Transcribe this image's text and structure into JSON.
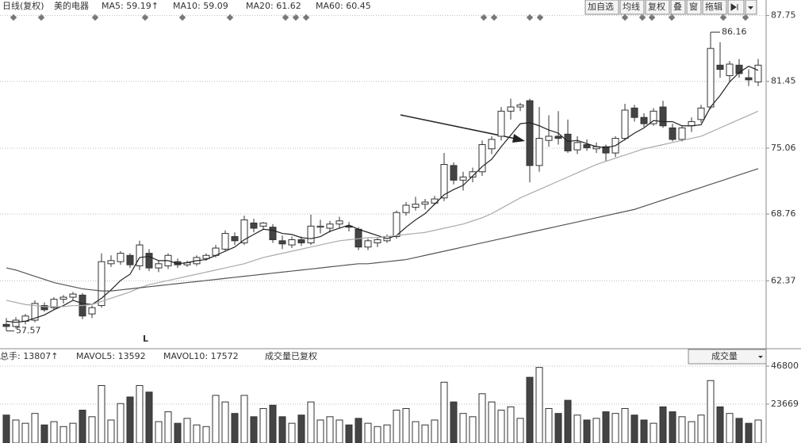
{
  "toolbar": [
    "加自选",
    "均线",
    "复权",
    "叠",
    "窗",
    "拖辑"
  ],
  "chart_data": [
    {
      "type": "candlestick",
      "period": "日线(复权)",
      "stock": "美的电器",
      "legend_texts": [
        "MA5: 59.19↑",
        "MA10: 59.09",
        "MA20: 61.62",
        "MA60: 60.45"
      ],
      "annotations": [
        "86.16",
        "57.57",
        "L"
      ],
      "ylim": [
        56.1,
        88.1
      ],
      "yticks": [
        62.37,
        68.76,
        75.06,
        81.45,
        87.75
      ],
      "grid": true,
      "up_color": "#ffffff",
      "down_color": "#444444",
      "open": [
        58.2,
        58.0,
        58.5,
        58.6,
        60.0,
        59.8,
        60.6,
        60.8,
        61.0,
        59.2,
        60.0,
        64.0,
        64.2,
        64.8,
        63.8,
        65.0,
        63.6,
        63.8,
        64.2,
        63.9,
        64.0,
        64.5,
        64.8,
        65.4,
        66.6,
        66.0,
        67.9,
        67.6,
        67.5,
        66.2,
        65.8,
        66.3,
        66.0,
        67.5,
        67.4,
        67.8,
        67.6,
        67.3,
        65.6,
        66.0,
        66.2,
        66.6,
        68.9,
        69.4,
        69.7,
        69.8,
        70.3,
        73.4,
        72.0,
        72.3,
        72.8,
        75.0,
        76.2,
        78.6,
        79.0,
        79.6,
        73.4,
        75.8,
        76.2,
        76.4,
        74.9,
        75.4,
        75.0,
        75.2,
        74.6,
        76.0,
        78.9,
        78.0,
        77.4,
        79.0,
        77.0,
        75.9,
        77.2,
        77.8,
        79.0,
        83.0,
        82.0,
        83.0,
        81.8,
        81.4
      ],
      "high": [
        58.8,
        58.9,
        59.2,
        60.5,
        60.3,
        60.8,
        61.0,
        61.3,
        61.2,
        60.0,
        65.0,
        64.8,
        65.2,
        65.0,
        66.2,
        65.4,
        64.3,
        65.0,
        64.5,
        64.3,
        64.8,
        65.0,
        65.8,
        67.2,
        67.0,
        68.6,
        68.3,
        68.0,
        67.8,
        66.7,
        66.6,
        66.6,
        68.7,
        68.2,
        68.1,
        68.5,
        68.0,
        67.5,
        66.4,
        66.5,
        66.8,
        69.1,
        69.9,
        70.4,
        70.2,
        70.5,
        74.6,
        73.7,
        72.8,
        73.2,
        75.8,
        76.2,
        79.0,
        79.8,
        79.4,
        79.8,
        79.0,
        78.2,
        78.6,
        77.8,
        76.2,
        75.9,
        75.6,
        75.4,
        76.2,
        79.3,
        79.2,
        78.4,
        78.9,
        79.6,
        77.4,
        77.2,
        78.0,
        79.2,
        86.16,
        85.2,
        83.4,
        83.6,
        82.6,
        83.6
      ],
      "low": [
        57.57,
        57.8,
        58.2,
        58.4,
        59.4,
        59.6,
        60.2,
        60.5,
        58.7,
        58.8,
        59.8,
        63.7,
        63.9,
        63.6,
        63.4,
        63.3,
        63.2,
        63.5,
        63.6,
        63.7,
        63.8,
        64.3,
        64.6,
        65.2,
        65.8,
        65.8,
        67.0,
        67.3,
        66.0,
        65.4,
        65.5,
        65.7,
        65.8,
        66.9,
        67.0,
        67.4,
        67.1,
        65.3,
        65.3,
        65.6,
        66.0,
        66.4,
        68.6,
        69.1,
        69.2,
        69.6,
        70.0,
        71.6,
        71.0,
        71.8,
        72.4,
        74.5,
        75.8,
        77.8,
        78.6,
        71.8,
        72.8,
        75.2,
        75.4,
        74.6,
        74.5,
        74.8,
        74.6,
        73.8,
        74.2,
        75.8,
        77.6,
        77.1,
        77.2,
        77.0,
        75.7,
        75.7,
        76.6,
        77.5,
        78.8,
        81.8,
        81.4,
        81.8,
        81.0,
        81.0
      ],
      "close": [
        58.0,
        58.6,
        59.0,
        60.2,
        59.6,
        60.6,
        60.8,
        61.1,
        59.0,
        59.8,
        64.2,
        64.3,
        65.0,
        63.9,
        65.8,
        63.6,
        64.0,
        64.8,
        63.9,
        64.1,
        64.6,
        64.8,
        65.5,
        66.9,
        66.2,
        68.2,
        67.4,
        67.9,
        66.3,
        65.9,
        66.3,
        66.0,
        67.6,
        67.6,
        67.8,
        68.1,
        67.5,
        65.6,
        66.2,
        66.3,
        66.6,
        68.9,
        69.6,
        69.7,
        69.9,
        70.2,
        73.5,
        72.0,
        72.3,
        72.8,
        75.4,
        75.9,
        78.6,
        79.0,
        79.2,
        73.4,
        76.0,
        76.2,
        76.0,
        74.8,
        75.6,
        75.1,
        75.2,
        74.6,
        76.0,
        78.7,
        78.0,
        77.4,
        78.6,
        77.2,
        75.9,
        77.0,
        77.6,
        78.9,
        84.6,
        82.6,
        83.1,
        82.2,
        81.6,
        83.0
      ],
      "lines": [
        {
          "name": "MA5",
          "color": "#222222",
          "values": [
            58.5,
            58.4,
            58.5,
            58.8,
            59.1,
            59.6,
            60.0,
            60.5,
            60.2,
            60.1,
            60.7,
            61.5,
            62.4,
            63.0,
            64.6,
            64.7,
            64.3,
            64.3,
            64.0,
            64.1,
            64.3,
            64.4,
            64.8,
            65.2,
            65.6,
            66.3,
            66.8,
            67.3,
            67.2,
            66.9,
            66.8,
            66.5,
            66.4,
            66.6,
            67.1,
            67.4,
            67.7,
            67.3,
            67.0,
            66.7,
            66.4,
            66.7,
            67.5,
            68.2,
            68.8,
            69.7,
            70.6,
            71.1,
            71.5,
            72.4,
            73.3,
            74.0,
            75.2,
            76.3,
            77.4,
            77.5,
            77.2,
            76.8,
            76.5,
            75.7,
            75.8,
            75.5,
            75.2,
            75.1,
            75.3,
            75.9,
            76.5,
            77.0,
            77.7,
            77.6,
            77.6,
            77.2,
            77.2,
            77.3,
            79.0,
            80.1,
            81.4,
            82.3,
            82.9,
            82.5
          ]
        },
        {
          "name": "MA20",
          "color": "#aaaaaa",
          "values": [
            60.5,
            60.3,
            60.1,
            60.0,
            59.9,
            59.9,
            59.9,
            60.0,
            60.0,
            60.1,
            60.4,
            60.7,
            61.0,
            61.3,
            61.7,
            62.0,
            62.2,
            62.4,
            62.6,
            62.8,
            63.0,
            63.2,
            63.4,
            63.6,
            63.8,
            64.0,
            64.3,
            64.6,
            64.8,
            65.0,
            65.2,
            65.4,
            65.6,
            65.8,
            66.0,
            66.2,
            66.3,
            66.4,
            66.5,
            66.5,
            66.6,
            66.7,
            66.8,
            66.9,
            67.0,
            67.2,
            67.4,
            67.6,
            67.8,
            68.1,
            68.4,
            68.8,
            69.3,
            69.8,
            70.3,
            70.7,
            71.1,
            71.5,
            71.9,
            72.3,
            72.7,
            73.1,
            73.5,
            73.8,
            74.1,
            74.4,
            74.7,
            75.0,
            75.2,
            75.4,
            75.6,
            75.8,
            76.0,
            76.2,
            76.6,
            77.0,
            77.4,
            77.8,
            78.2,
            78.6
          ]
        },
        {
          "name": "MA60",
          "color": "#555555",
          "values": [
            63.6,
            63.4,
            63.1,
            62.8,
            62.5,
            62.2,
            62.0,
            61.8,
            61.6,
            61.5,
            61.4,
            61.4,
            61.5,
            61.6,
            61.7,
            61.8,
            61.9,
            62.0,
            62.1,
            62.2,
            62.3,
            62.4,
            62.5,
            62.6,
            62.7,
            62.8,
            62.9,
            63.0,
            63.1,
            63.2,
            63.3,
            63.4,
            63.5,
            63.6,
            63.7,
            63.8,
            63.9,
            64.0,
            64.0,
            64.1,
            64.2,
            64.3,
            64.4,
            64.6,
            64.8,
            65.0,
            65.2,
            65.4,
            65.6,
            65.8,
            66.0,
            66.2,
            66.4,
            66.6,
            66.8,
            67.0,
            67.2,
            67.4,
            67.6,
            67.8,
            68.0,
            68.2,
            68.4,
            68.6,
            68.8,
            69.0,
            69.2,
            69.5,
            69.8,
            70.1,
            70.4,
            70.7,
            71.0,
            71.3,
            71.6,
            71.9,
            72.2,
            72.5,
            72.8,
            73.1
          ]
        }
      ]
    },
    {
      "type": "volume",
      "legend_texts": [
        "总手: 13807↑",
        "MAVOL5: 13592",
        "MAVOL10: 17572",
        "成交量已复权"
      ],
      "selector": "成交量",
      "ylim": [
        0,
        46800
      ],
      "yticks": [
        23669,
        46800
      ],
      "grid": true,
      "values": [
        17000,
        14000,
        12000,
        18000,
        11000,
        13000,
        10000,
        12000,
        20000,
        16000,
        35000,
        14000,
        24000,
        28000,
        35000,
        31000,
        13000,
        19000,
        12000,
        15000,
        11000,
        10000,
        29000,
        25000,
        18000,
        29000,
        16000,
        21000,
        23000,
        16000,
        12000,
        17000,
        25000,
        14000,
        16000,
        14000,
        11000,
        15000,
        12000,
        10000,
        11000,
        20000,
        21000,
        13000,
        11000,
        14000,
        37000,
        25000,
        18000,
        16000,
        30000,
        25000,
        20000,
        22000,
        15000,
        40000,
        46000,
        21000,
        18000,
        26000,
        17000,
        14000,
        15000,
        19000,
        18000,
        21000,
        17000,
        14000,
        12000,
        22000,
        19000,
        16000,
        13000,
        17000,
        38000,
        22000,
        18000,
        15000,
        12000,
        14000
      ]
    }
  ]
}
